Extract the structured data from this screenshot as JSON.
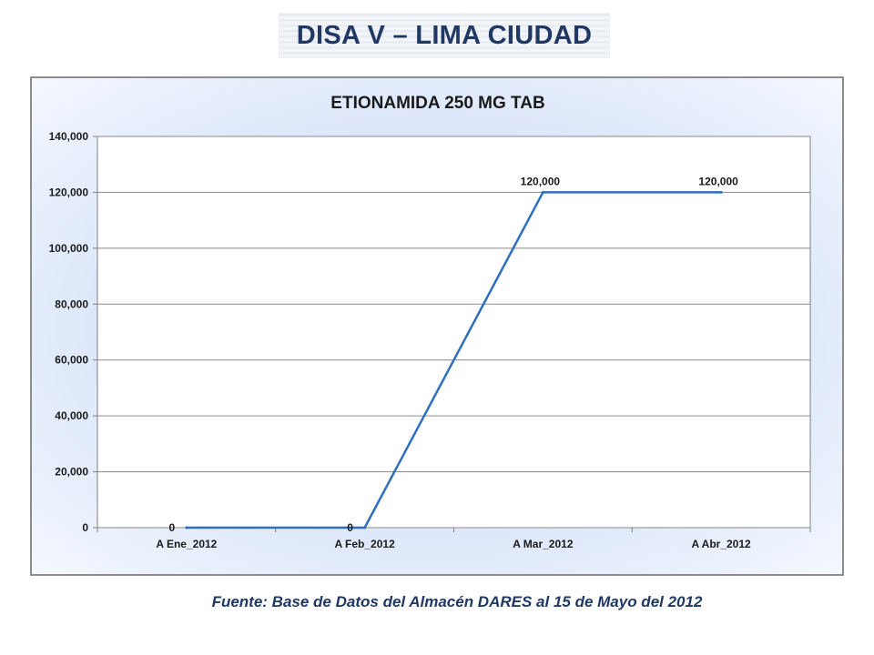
{
  "header": {
    "title": "DISA V – LIMA CIUDAD"
  },
  "footer": {
    "source": "Fuente: Base de Datos del Almacén DARES al 15 de Mayo del 2012"
  },
  "chart_data": {
    "type": "line",
    "title": "ETIONAMIDA 250 MG TAB",
    "xlabel": "",
    "ylabel": "",
    "categories": [
      "A Ene_2012",
      "A Feb_2012",
      "A Mar_2012",
      "A Abr_2012"
    ],
    "series": [
      {
        "values": [
          0,
          0,
          120000,
          120000
        ],
        "data_labels": [
          "0",
          "0",
          "120,000",
          "120,000"
        ],
        "color": "#2e6fc0"
      }
    ],
    "ylim": [
      0,
      140000
    ],
    "yticks": [
      0,
      20000,
      40000,
      60000,
      80000,
      100000,
      120000,
      140000
    ],
    "ytick_labels": [
      "0",
      "20,000",
      "40,000",
      "60,000",
      "80,000",
      "100,000",
      "120,000",
      "140,000"
    ],
    "grid": true,
    "legend": "none"
  }
}
